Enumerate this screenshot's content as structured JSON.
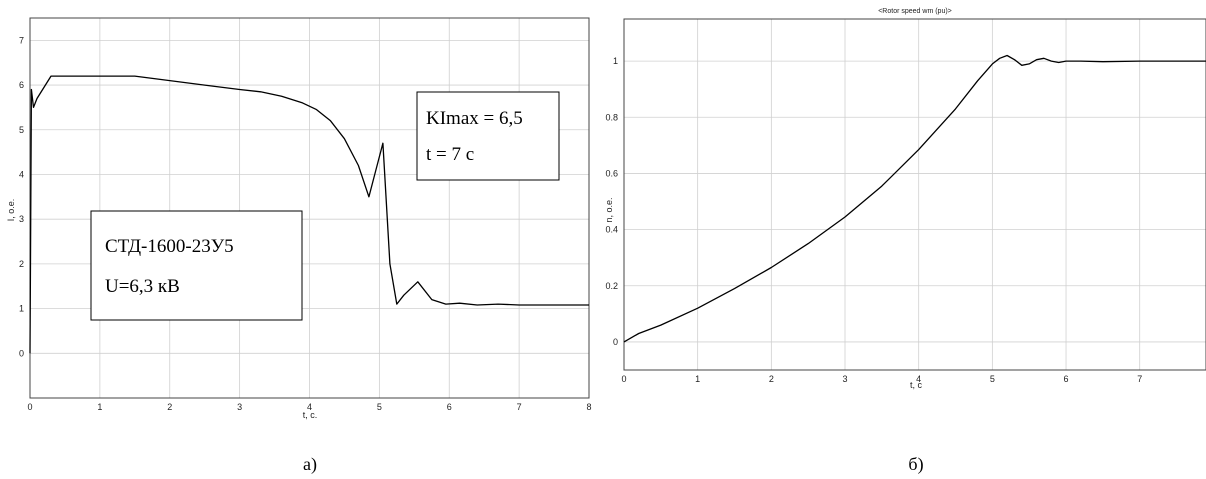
{
  "chart_data": [
    {
      "type": "line",
      "panel": "a",
      "caption": "а)",
      "title": "",
      "xlabel": "t, c.",
      "ylabel": "I, o.e.",
      "xlim": [
        0,
        8
      ],
      "ylim": [
        -1,
        7.5
      ],
      "xticks": [
        "0",
        "1",
        "2",
        "3",
        "4",
        "5",
        "6",
        "7",
        "8"
      ],
      "yticks": [
        "0",
        "1",
        "2",
        "3",
        "4",
        "5",
        "6",
        "7"
      ],
      "grid": true,
      "annotations": [
        {
          "lines": [
            "СТД-1600-23У5",
            "U=6,3 кВ"
          ]
        },
        {
          "lines": [
            "KImax = 6,5",
            "t = 7 с"
          ]
        }
      ],
      "series": [
        {
          "x": [
            0,
            0.02,
            0.05,
            0.1,
            0.3,
            0.8,
            1.5,
            2.0,
            2.5,
            3.0,
            3.3,
            3.6,
            3.9,
            4.1,
            4.3,
            4.5,
            4.7,
            4.85,
            4.95,
            5.05,
            5.15,
            5.25,
            5.35,
            5.55,
            5.75,
            5.95,
            6.15,
            6.4,
            6.7,
            7.0,
            7.5,
            8.0
          ],
          "y": [
            0,
            5.9,
            5.5,
            5.7,
            6.2,
            6.2,
            6.2,
            6.1,
            6.0,
            5.9,
            5.85,
            5.75,
            5.6,
            5.45,
            5.2,
            4.8,
            4.2,
            3.5,
            4.1,
            4.7,
            2.0,
            1.1,
            1.3,
            1.6,
            1.2,
            1.1,
            1.12,
            1.08,
            1.1,
            1.08,
            1.08,
            1.08
          ]
        }
      ]
    },
    {
      "type": "line",
      "panel": "b",
      "caption": "б)",
      "title": "<Rotor speed  wm  (pu)>",
      "xlabel": "t, c",
      "ylabel": "n, o.e.",
      "xlim": [
        0,
        7.9
      ],
      "ylim": [
        -0.1,
        1.15
      ],
      "xticks": [
        "0",
        "1",
        "2",
        "3",
        "4",
        "5",
        "6",
        "7"
      ],
      "yticks": [
        "0",
        "0.2",
        "0.4",
        "0.6",
        "0.8",
        "1"
      ],
      "grid": true,
      "series": [
        {
          "x": [
            0,
            0.2,
            0.5,
            1.0,
            1.5,
            2.0,
            2.5,
            3.0,
            3.5,
            4.0,
            4.5,
            4.8,
            5.0,
            5.1,
            5.2,
            5.3,
            5.4,
            5.5,
            5.6,
            5.7,
            5.8,
            5.9,
            6.0,
            6.2,
            6.5,
            7.0,
            7.5,
            7.9
          ],
          "y": [
            0,
            0.03,
            0.06,
            0.12,
            0.19,
            0.265,
            0.35,
            0.445,
            0.555,
            0.685,
            0.83,
            0.93,
            0.99,
            1.01,
            1.02,
            1.005,
            0.985,
            0.99,
            1.005,
            1.01,
            1.0,
            0.995,
            1.0,
            1.0,
            0.998,
            1.0,
            1.0,
            1.0
          ]
        }
      ]
    }
  ]
}
